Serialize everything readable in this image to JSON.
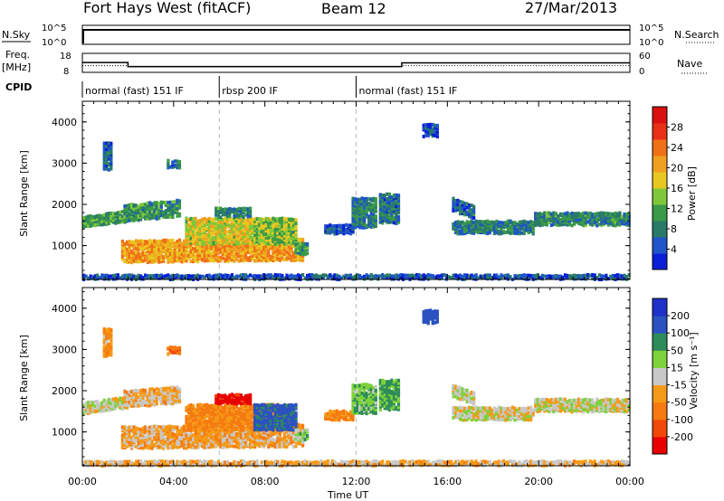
{
  "header": {
    "title": "Fort Hays West (fitACF)",
    "beam": "Beam 12",
    "date": "27/Mar/2013"
  },
  "status": {
    "nsky_label": "N.Sky",
    "nsearch_label": "N.Search",
    "freq_label": "Freq.",
    "freq_unit": "[MHz]",
    "nave_label": "Nave",
    "cpid_label": "CPID",
    "nsky_ticks": [
      "10^5",
      "10^0"
    ],
    "nsearch_ticks": [
      "10^5",
      "10^0"
    ],
    "freq_ticks": [
      "18",
      "8"
    ],
    "nave_ticks": [
      "60",
      "0"
    ],
    "cpid_segments": [
      {
        "start": 0,
        "end": 6,
        "label": "normal (fast) 151 IF"
      },
      {
        "start": 6,
        "end": 12,
        "label": "rbsp 200 IF"
      },
      {
        "start": 12,
        "end": 24,
        "label": "normal (fast) 151 IF"
      }
    ],
    "freq_steps": [
      {
        "start": 0,
        "end": 2,
        "value": 13.2
      },
      {
        "start": 2,
        "end": 14,
        "value": 10.6
      },
      {
        "start": 14,
        "end": 24,
        "value": 13.0
      }
    ],
    "nave_steps": [
      {
        "start": 0,
        "end": 2,
        "value": 19
      },
      {
        "start": 2,
        "end": 14,
        "value": 14
      },
      {
        "start": 14,
        "end": 24,
        "value": 19
      }
    ]
  },
  "power_panel": {
    "ylabel": "Slant Range [km]",
    "yticks": [
      "1000",
      "2000",
      "3000",
      "4000"
    ],
    "cbar_label": "Power [dB]",
    "cbar_ticks": [
      "28",
      "24",
      "20",
      "16",
      "12",
      "8",
      "4"
    ]
  },
  "velocity_panel": {
    "ylabel": "Slant Range [km]",
    "yticks": [
      "1000",
      "2000",
      "3000",
      "4000"
    ],
    "cbar_label": "Velocity [m s⁻¹]",
    "cbar_ticks": [
      "200",
      "100",
      "50",
      "15",
      "-15",
      "-50",
      "-100",
      "-200"
    ]
  },
  "xaxis": {
    "label": "Time UT",
    "ticks": [
      "00:00",
      "04:00",
      "08:00",
      "12:00",
      "16:00",
      "20:00",
      "00:00"
    ]
  },
  "chart_data": {
    "type": "heatmap",
    "x_unit": "hours UT",
    "y_unit": "km",
    "xlim": [
      0,
      24
    ],
    "ylim": [
      180,
      4500
    ],
    "power_colorbar": {
      "min": 0,
      "max": 32,
      "colors": [
        "#0a1ed8",
        "#1f55c8",
        "#2a7a6a",
        "#3a9a48",
        "#7ec83a",
        "#e8c820",
        "#f0a020",
        "#f07018",
        "#e83018",
        "#d81010"
      ]
    },
    "velocity_colorbar": {
      "bounds": [
        -250,
        -200,
        -100,
        -50,
        -15,
        15,
        50,
        100,
        200,
        250
      ],
      "colors": [
        "#e80000",
        "#f04808",
        "#f57a10",
        "#f59a18",
        "#c8c8c8",
        "#7ed23a",
        "#2e8c5a",
        "#2c52c0",
        "#1e32c8"
      ]
    },
    "vertical_markers": [
      6,
      12
    ],
    "regions": [
      {
        "t0": 0.0,
        "t1": 2.0,
        "r0": 1500,
        "r1": 1750,
        "slope": 150,
        "power": 11,
        "velocity": 5
      },
      {
        "t0": 1.8,
        "t1": 4.3,
        "r0": 1650,
        "r1": 2050,
        "slope": 120,
        "power": 10,
        "velocity": -20
      },
      {
        "t0": 0.9,
        "t1": 1.3,
        "r0": 2900,
        "r1": 3550,
        "slope": 0,
        "power": 6,
        "velocity": -40
      },
      {
        "t0": 3.7,
        "t1": 4.2,
        "r0": 2950,
        "r1": 3100,
        "slope": 0,
        "power": 7,
        "velocity": -80
      },
      {
        "t0": 1.7,
        "t1": 9.6,
        "r0": 650,
        "r1": 1150,
        "slope": 55,
        "power": 21,
        "velocity": -30
      },
      {
        "t0": 4.5,
        "t1": 9.0,
        "r0": 1100,
        "r1": 1700,
        "slope": 0,
        "power": 17,
        "velocity": -60
      },
      {
        "t0": 7.5,
        "t1": 9.3,
        "r0": 1100,
        "r1": 1700,
        "slope": 0,
        "power": 14,
        "velocity": 120
      },
      {
        "t0": 9.3,
        "t1": 9.8,
        "r0": 850,
        "r1": 1100,
        "slope": 0,
        "power": 10,
        "velocity": 20
      },
      {
        "t0": 5.8,
        "t1": 7.3,
        "r0": 1750,
        "r1": 1950,
        "slope": 0,
        "power": 9,
        "velocity": -230
      },
      {
        "t0": 10.6,
        "t1": 11.8,
        "r0": 1350,
        "r1": 1550,
        "slope": 0,
        "power": 5,
        "velocity": -60
      },
      {
        "t0": 11.8,
        "t1": 12.8,
        "r0": 1500,
        "r1": 2200,
        "slope": 0,
        "power": 8,
        "velocity": 40
      },
      {
        "t0": 13.0,
        "t1": 13.8,
        "r0": 1600,
        "r1": 2300,
        "slope": 0,
        "power": 7,
        "velocity": 60
      },
      {
        "t0": 16.2,
        "t1": 19.8,
        "r0": 1350,
        "r1": 1650,
        "slope": 0,
        "power": 8,
        "velocity": 0
      },
      {
        "t0": 16.2,
        "t1": 17.2,
        "r0": 1900,
        "r1": 2200,
        "slope": -200,
        "power": 6,
        "velocity": 0
      },
      {
        "t0": 19.8,
        "t1": 24.0,
        "r0": 1550,
        "r1": 1850,
        "slope": 0,
        "power": 9,
        "velocity": 0
      },
      {
        "t0": 14.9,
        "t1": 15.5,
        "r0": 3700,
        "r1": 4000,
        "slope": 0,
        "power": 4,
        "velocity": 150
      },
      {
        "t0": 0.0,
        "t1": 24.0,
        "r0": 180,
        "r1": 330,
        "slope": 0,
        "power": 5,
        "velocity": -20
      }
    ]
  }
}
